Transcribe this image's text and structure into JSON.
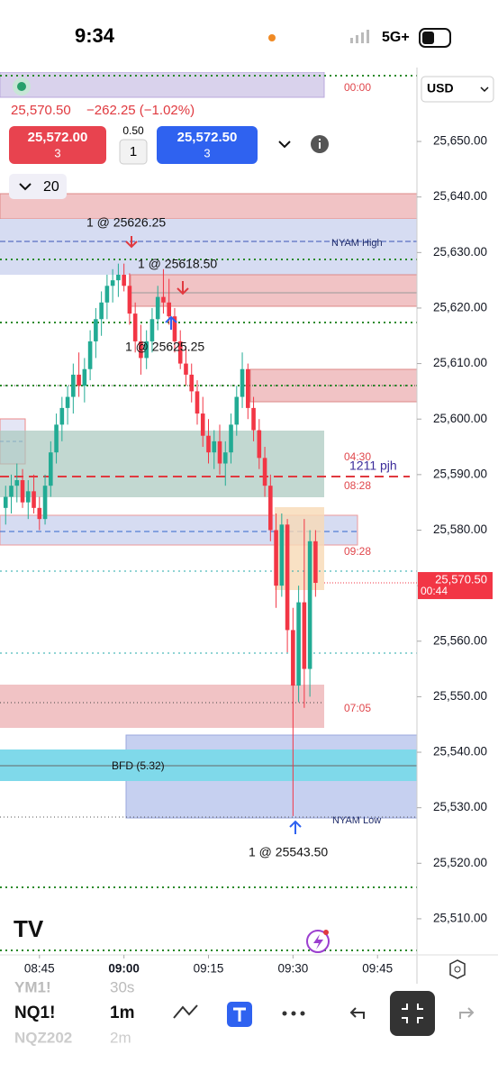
{
  "status_bar": {
    "time": "9:34",
    "network": "5G+"
  },
  "header": {
    "currency": "USD",
    "quote": "25,570.50",
    "change": "−262.25 (−1.02%)",
    "sell_price": "25,572.00",
    "sell_qty": "3",
    "tick_size": "0.50",
    "quantity": "1",
    "buy_price": "25,572.50",
    "buy_qty": "3",
    "scale": "20"
  },
  "annotations": {
    "session_a": "00:00",
    "nyam_high": "NYAM High",
    "pjh": "1211 pjh",
    "time_a": "04:30",
    "time_b": "08:28",
    "time_c": "09:28",
    "time_d": "07:05",
    "bfd": "BFD  (5.32)",
    "nyam_low": "NYAM Low",
    "fill_1": "1 @ 25626.25",
    "fill_2": "1 @ 25618.50",
    "fill_3": "1 @ 25625.25",
    "fill_4": "1 @ 25543.50"
  },
  "chart_data": {
    "type": "candlestick",
    "ylim": [
      25503.5,
      25662.5
    ],
    "yticks": [
      {
        "value": 25650,
        "label": "25,650.00"
      },
      {
        "value": 25640,
        "label": "25,640.00"
      },
      {
        "value": 25630,
        "label": "25,630.00"
      },
      {
        "value": 25620,
        "label": "25,620.00"
      },
      {
        "value": 25610,
        "label": "25,610.00"
      },
      {
        "value": 25600,
        "label": "25,600.00"
      },
      {
        "value": 25590,
        "label": "25,590.00"
      },
      {
        "value": 25580,
        "label": "25,580.00"
      },
      {
        "value": 25570,
        "label": "25,570.00"
      },
      {
        "value": 25560,
        "label": "25,560.00"
      },
      {
        "value": 25550,
        "label": "25,550.00"
      },
      {
        "value": 25540,
        "label": "25,540.00"
      },
      {
        "value": 25530,
        "label": "25,530.00"
      },
      {
        "value": 25520,
        "label": "25,520.00"
      },
      {
        "value": 25510,
        "label": "25,510.00"
      }
    ],
    "xlim": [
      "08:38",
      "09:52"
    ],
    "xticks": [
      "08:45",
      "09:00",
      "09:15",
      "09:30",
      "09:45"
    ],
    "up_color": "#22ab94",
    "down_color": "#f23645",
    "last_price": {
      "value": 25570.5,
      "label": "25,570.50"
    },
    "countdown": "00:44",
    "candles": {
      "x": [
        "08:39",
        "08:40",
        "08:41",
        "08:42",
        "08:43",
        "08:44",
        "08:45",
        "08:46",
        "08:47",
        "08:48",
        "08:49",
        "08:50",
        "08:51",
        "08:52",
        "08:53",
        "08:54",
        "08:55",
        "08:56",
        "08:57",
        "08:58",
        "08:59",
        "09:00",
        "09:01",
        "09:02",
        "09:03",
        "09:04",
        "09:05",
        "09:06",
        "09:07",
        "09:08",
        "09:09",
        "09:10",
        "09:11",
        "09:12",
        "09:13",
        "09:14",
        "09:15",
        "09:16",
        "09:17",
        "09:18",
        "09:19",
        "09:20",
        "09:21",
        "09:22",
        "09:23",
        "09:24",
        "09:25",
        "09:26",
        "09:27",
        "09:28",
        "09:29",
        "09:30",
        "09:31",
        "09:32",
        "09:33",
        "09:34"
      ],
      "open": [
        25584,
        25586,
        25588,
        25589,
        25585,
        25587,
        25584,
        25582,
        25588,
        25594,
        25599,
        25602,
        25604,
        25608,
        25606,
        25609,
        25614,
        25618,
        25621,
        25624,
        25625,
        25626,
        25624,
        25619,
        25614,
        25611,
        25614,
        25618,
        25622,
        25621,
        25618.5,
        25614,
        25610,
        25608,
        25605,
        25601,
        25597,
        25594,
        25596,
        25592,
        25594,
        25599,
        25604,
        25609,
        25602,
        25598,
        25593,
        25588,
        25580,
        25570,
        25581,
        25562,
        25552,
        25567,
        25555,
        25578
      ],
      "high": [
        25588,
        25590,
        25592,
        25591,
        25589,
        25590,
        25586,
        25590,
        25596,
        25601,
        25604,
        25606,
        25610,
        25612,
        25611,
        25616,
        25620,
        25623,
        25626,
        25627,
        25628,
        25628,
        25626.25,
        25621,
        25617,
        25616,
        25620,
        25624,
        25627,
        25625.25,
        25620,
        25616,
        25613,
        25610,
        25607,
        25604,
        25600,
        25598,
        25599,
        25596,
        25601,
        25606,
        25612,
        25610,
        25604,
        25600,
        25595,
        25590,
        25583,
        25583,
        25582,
        25566,
        25570,
        25582,
        25580,
        25580
      ],
      "low": [
        25581,
        25583,
        25585,
        25584,
        25582,
        25583,
        25580,
        25581,
        25586,
        25592,
        25596,
        25599,
        25601,
        25604,
        25603,
        25607,
        25611,
        25615,
        25618,
        25621,
        25622,
        25623,
        25617,
        25612,
        25608,
        25609,
        25612,
        25616,
        25619,
        25617,
        25612,
        25609,
        25606,
        25603,
        25599,
        25595,
        25592,
        25591,
        25590,
        25588,
        25592,
        25597,
        25602,
        25600,
        25596,
        25591,
        25586,
        25578,
        25566,
        25568,
        25558,
        25528.5,
        25549,
        25548,
        25550,
        25568
      ],
      "close": [
        25586,
        25588,
        25589,
        25585,
        25587,
        25584,
        25582,
        25588,
        25594,
        25599,
        25602,
        25604,
        25608,
        25606,
        25609,
        25614,
        25618,
        25621,
        25624,
        25625,
        25626,
        25624,
        25619,
        25614,
        25611,
        25614,
        25618,
        25622,
        25621,
        25618.5,
        25614,
        25610,
        25608,
        25605,
        25601,
        25597,
        25594,
        25596,
        25592,
        25594,
        25599,
        25604,
        25609,
        25602,
        25598,
        25593,
        25588,
        25580,
        25570,
        25581,
        25562,
        25552,
        25567,
        25555,
        25578,
        25570.5
      ]
    }
  },
  "bottom_bar": {
    "symbol_prev": "YM1!",
    "interval_prev": "30s",
    "symbol": "NQ1!",
    "interval": "1m",
    "symbol_next": "NQZ202",
    "interval_next": "2m"
  }
}
